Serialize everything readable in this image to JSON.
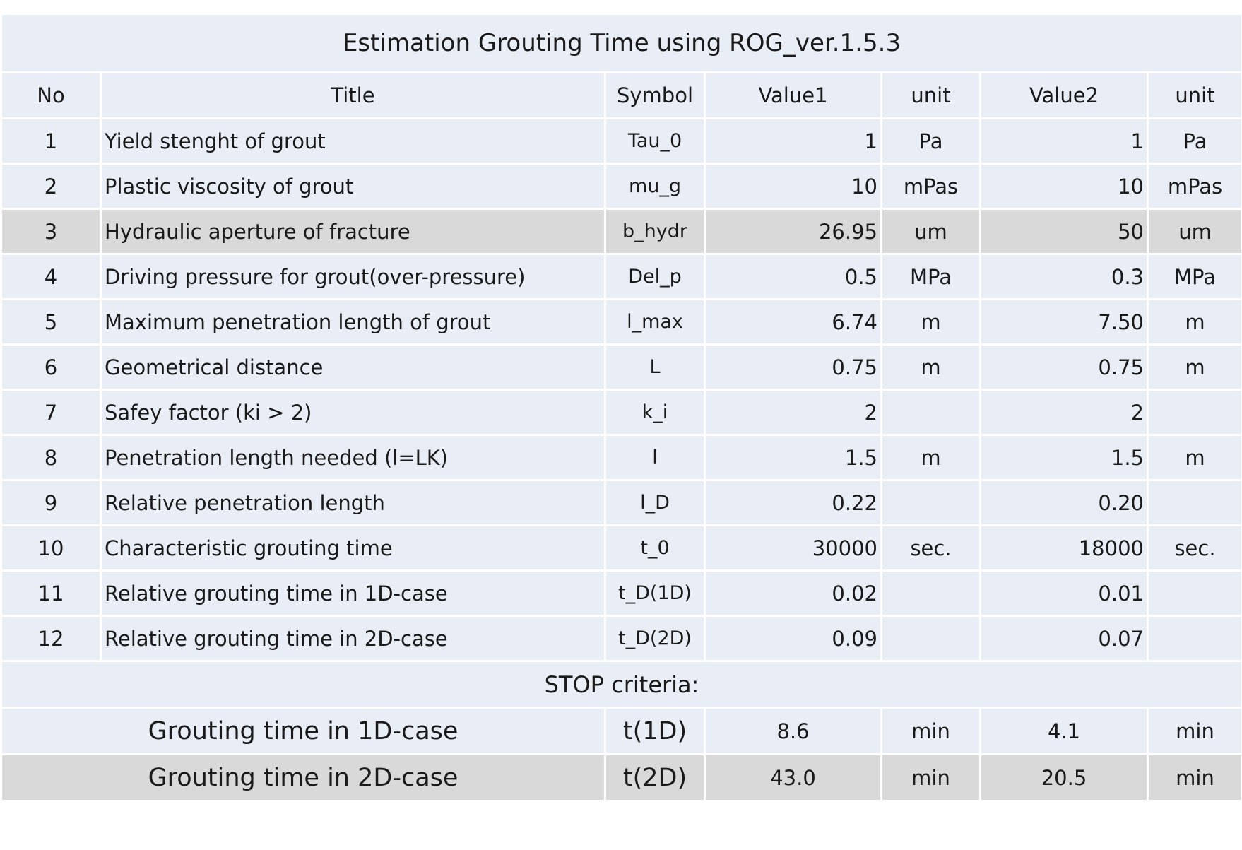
{
  "table": {
    "title": "Estimation Grouting Time using ROG_ver.1.5.3",
    "headers": {
      "no": "No",
      "title": "Title",
      "symbol": "Symbol",
      "value1": "Value1",
      "unit1": "unit",
      "value2": "Value2",
      "unit2": "unit"
    },
    "rows": [
      {
        "no": "1",
        "title": "Yield stenght of grout",
        "symbol": "Tau_0",
        "value1": "1",
        "unit1": "Pa",
        "value2": "1",
        "unit2": "Pa"
      },
      {
        "no": "2",
        "title": "Plastic viscosity of grout",
        "symbol": "mu_g",
        "value1": "10",
        "unit1": "mPas",
        "value2": "10",
        "unit2": "mPas"
      },
      {
        "no": "3",
        "title": "Hydraulic aperture of fracture",
        "symbol": "b_hydr",
        "value1": "26.95",
        "unit1": "um",
        "value2": "50",
        "unit2": "um"
      },
      {
        "no": "4",
        "title": "Driving pressure for grout(over-pressure)",
        "symbol": "Del_p",
        "value1": "0.5",
        "unit1": "MPa",
        "value2": "0.3",
        "unit2": "MPa"
      },
      {
        "no": "5",
        "title": "Maximum penetration length of grout",
        "symbol": "l_max",
        "value1": "6.74",
        "unit1": "m",
        "value2": "7.50",
        "unit2": "m"
      },
      {
        "no": "6",
        "title": "Geometrical distance",
        "symbol": "L",
        "value1": "0.75",
        "unit1": "m",
        "value2": "0.75",
        "unit2": "m"
      },
      {
        "no": "7",
        "title": "Safey factor (ki > 2)",
        "symbol": "k_i",
        "value1": "2",
        "unit1": "",
        "value2": "2",
        "unit2": ""
      },
      {
        "no": "8",
        "title": "Penetration length needed (l=LK)",
        "symbol": "l",
        "value1": "1.5",
        "unit1": "m",
        "value2": "1.5",
        "unit2": "m"
      },
      {
        "no": "9",
        "title": "Relative penetration length",
        "symbol": "l_D",
        "value1": "0.22",
        "unit1": "",
        "value2": "0.20",
        "unit2": ""
      },
      {
        "no": "10",
        "title": "Characteristic grouting time",
        "symbol": "t_0",
        "value1": "30000",
        "unit1": "sec.",
        "value2": "18000",
        "unit2": "sec."
      },
      {
        "no": "11",
        "title": "Relative grouting time in 1D-case",
        "symbol": "t_D(1D)",
        "value1": "0.02",
        "unit1": "",
        "value2": "0.01",
        "unit2": ""
      },
      {
        "no": "12",
        "title": "Relative grouting time in 2D-case",
        "symbol": "t_D(2D)",
        "value1": "0.09",
        "unit1": "",
        "value2": "0.07",
        "unit2": ""
      }
    ],
    "stop_label": "STOP criteria:",
    "results": [
      {
        "title": "Grouting time in 1D-case",
        "symbol": "t(1D)",
        "value1": "8.6",
        "unit1": "min",
        "value2": "4.1",
        "unit2": "min"
      },
      {
        "title": "Grouting time in 2D-case",
        "symbol": "t(2D)",
        "value1": "43.0",
        "unit1": "min",
        "value2": "20.5",
        "unit2": "min"
      }
    ],
    "colors": {
      "cell_bg": "#e9eef6",
      "highlight_bg": "#d9d9d9",
      "grid": "#ffffff"
    }
  }
}
